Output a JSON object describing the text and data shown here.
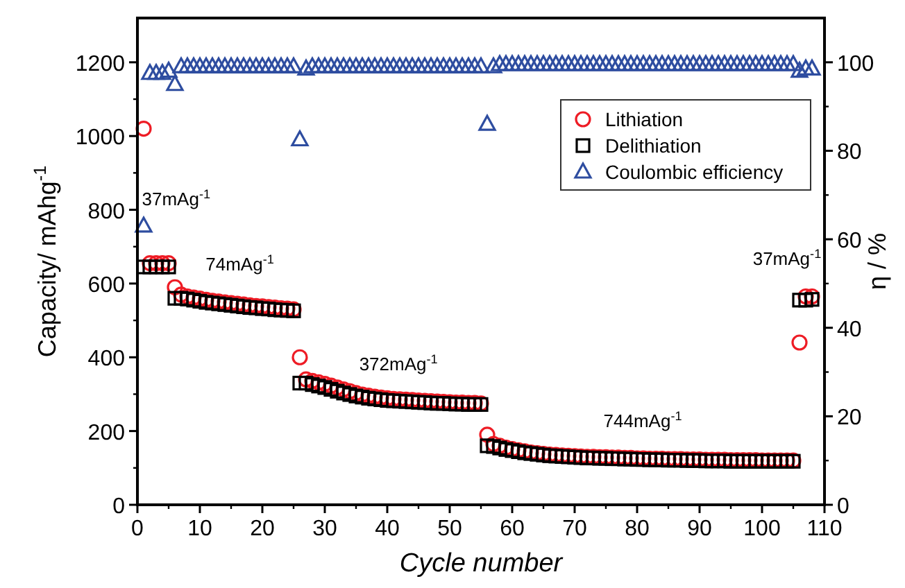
{
  "chart_data": {
    "type": "scatter",
    "xlabel": "Cycle number",
    "ylabel": "Capacity/ mAhg$^{-1}$",
    "y2label": "η / %",
    "x": [
      1,
      2,
      3,
      4,
      5,
      6,
      7,
      8,
      9,
      10,
      11,
      12,
      13,
      14,
      15,
      16,
      17,
      18,
      19,
      20,
      21,
      22,
      23,
      24,
      25,
      26,
      27,
      28,
      29,
      30,
      31,
      32,
      33,
      34,
      35,
      36,
      37,
      38,
      39,
      40,
      41,
      42,
      43,
      44,
      45,
      46,
      47,
      48,
      49,
      50,
      51,
      52,
      53,
      54,
      55,
      56,
      57,
      58,
      59,
      60,
      61,
      62,
      63,
      64,
      65,
      66,
      67,
      68,
      69,
      70,
      71,
      72,
      73,
      74,
      75,
      76,
      77,
      78,
      79,
      80,
      81,
      82,
      83,
      84,
      85,
      86,
      87,
      88,
      89,
      90,
      91,
      92,
      93,
      94,
      95,
      96,
      97,
      98,
      99,
      100,
      101,
      102,
      103,
      104,
      105,
      106,
      107,
      108
    ],
    "xlim": [
      0,
      110
    ],
    "xticks": [
      0,
      10,
      20,
      30,
      40,
      50,
      60,
      70,
      80,
      90,
      100,
      110
    ],
    "ylim": [
      0,
      1320
    ],
    "yticks": [
      0,
      200,
      400,
      600,
      800,
      1000,
      1200
    ],
    "y2lim": [
      0,
      110
    ],
    "y2ticks": [
      0,
      20,
      40,
      60,
      80,
      100
    ],
    "legend": "top right",
    "grid": false,
    "series": [
      {
        "name": "Lithiation",
        "color": "#ee1c25",
        "marker": "circle",
        "values": [
          1020,
          655,
          655,
          655,
          655,
          590,
          570,
          565,
          562,
          559,
          556,
          553,
          551,
          549,
          547,
          545,
          543,
          541,
          539,
          538,
          536,
          535,
          533,
          532,
          530,
          400,
          340,
          336,
          332,
          328,
          323,
          318,
          313,
          308,
          303,
          299,
          296,
          293,
          291,
          289,
          287,
          286,
          285,
          284,
          283,
          282,
          281,
          280,
          279,
          278,
          277,
          277,
          276,
          276,
          275,
          190,
          165,
          160,
          155,
          151,
          148,
          145,
          142,
          140,
          138,
          136,
          135,
          134,
          133,
          132,
          131,
          130,
          130,
          129,
          129,
          128,
          128,
          127,
          127,
          126,
          126,
          125,
          125,
          125,
          124,
          124,
          124,
          123,
          123,
          123,
          122,
          122,
          122,
          122,
          121,
          121,
          121,
          121,
          121,
          120,
          120,
          120,
          120,
          120,
          120,
          440,
          565,
          565
        ]
      },
      {
        "name": "Delithiation",
        "color": "#000000",
        "marker": "square",
        "values": [
          645,
          645,
          645,
          645,
          645,
          560,
          560,
          558,
          555,
          552,
          549,
          547,
          545,
          543,
          541,
          539,
          537,
          535,
          534,
          532,
          531,
          529,
          528,
          527,
          526,
          330,
          330,
          326,
          322,
          318,
          313,
          308,
          303,
          299,
          295,
          292,
          289,
          287,
          285,
          283,
          282,
          281,
          280,
          279,
          278,
          277,
          276,
          275,
          275,
          274,
          273,
          273,
          272,
          272,
          272,
          160,
          158,
          154,
          150,
          147,
          144,
          141,
          139,
          137,
          135,
          133,
          132,
          131,
          130,
          129,
          128,
          127,
          127,
          126,
          126,
          125,
          125,
          124,
          124,
          123,
          123,
          122,
          122,
          122,
          121,
          121,
          121,
          120,
          120,
          120,
          119,
          119,
          119,
          119,
          118,
          118,
          118,
          118,
          118,
          118,
          118,
          118,
          118,
          118,
          118,
          555,
          555,
          557
        ]
      },
      {
        "name": "Coulombic efficiency",
        "color": "#2e4da0",
        "marker": "triangle",
        "axis": "y2",
        "values": [
          63,
          97.5,
          97.5,
          97.5,
          98,
          95,
          99,
          99,
          99,
          99,
          99,
          99,
          99,
          99,
          99,
          99,
          99,
          99,
          99,
          99,
          99,
          99,
          99,
          99,
          99,
          82.5,
          98.5,
          99,
          99,
          99,
          99,
          99,
          99,
          99,
          99,
          99,
          99,
          99,
          99,
          99,
          99,
          99,
          99,
          99,
          99,
          99,
          99,
          99,
          99,
          99,
          99,
          99,
          99,
          99,
          99,
          86,
          99,
          99.5,
          99.5,
          99.5,
          99.5,
          99.5,
          99.5,
          99.5,
          99.5,
          99.5,
          99.5,
          99.5,
          99.5,
          99.5,
          99.5,
          99.5,
          99.5,
          99.5,
          99.5,
          99.5,
          99.5,
          99.5,
          99.5,
          99.5,
          99.5,
          99.5,
          99.5,
          99.5,
          99.5,
          99.5,
          99.5,
          99.5,
          99.5,
          99.5,
          99.5,
          99.5,
          99.5,
          99.5,
          99.5,
          99.5,
          99.5,
          99.5,
          99.5,
          99.5,
          99.5,
          99.5,
          99.5,
          99.5,
          99.5,
          98,
          98.5,
          98.5
        ]
      }
    ],
    "annotations": [
      "37mAg$^{-1}$",
      "74mAg$^{-1}$",
      "372mAg$^{-1}$",
      "744mAg$^{-1}$",
      "37mAg$^{-1}$"
    ]
  }
}
